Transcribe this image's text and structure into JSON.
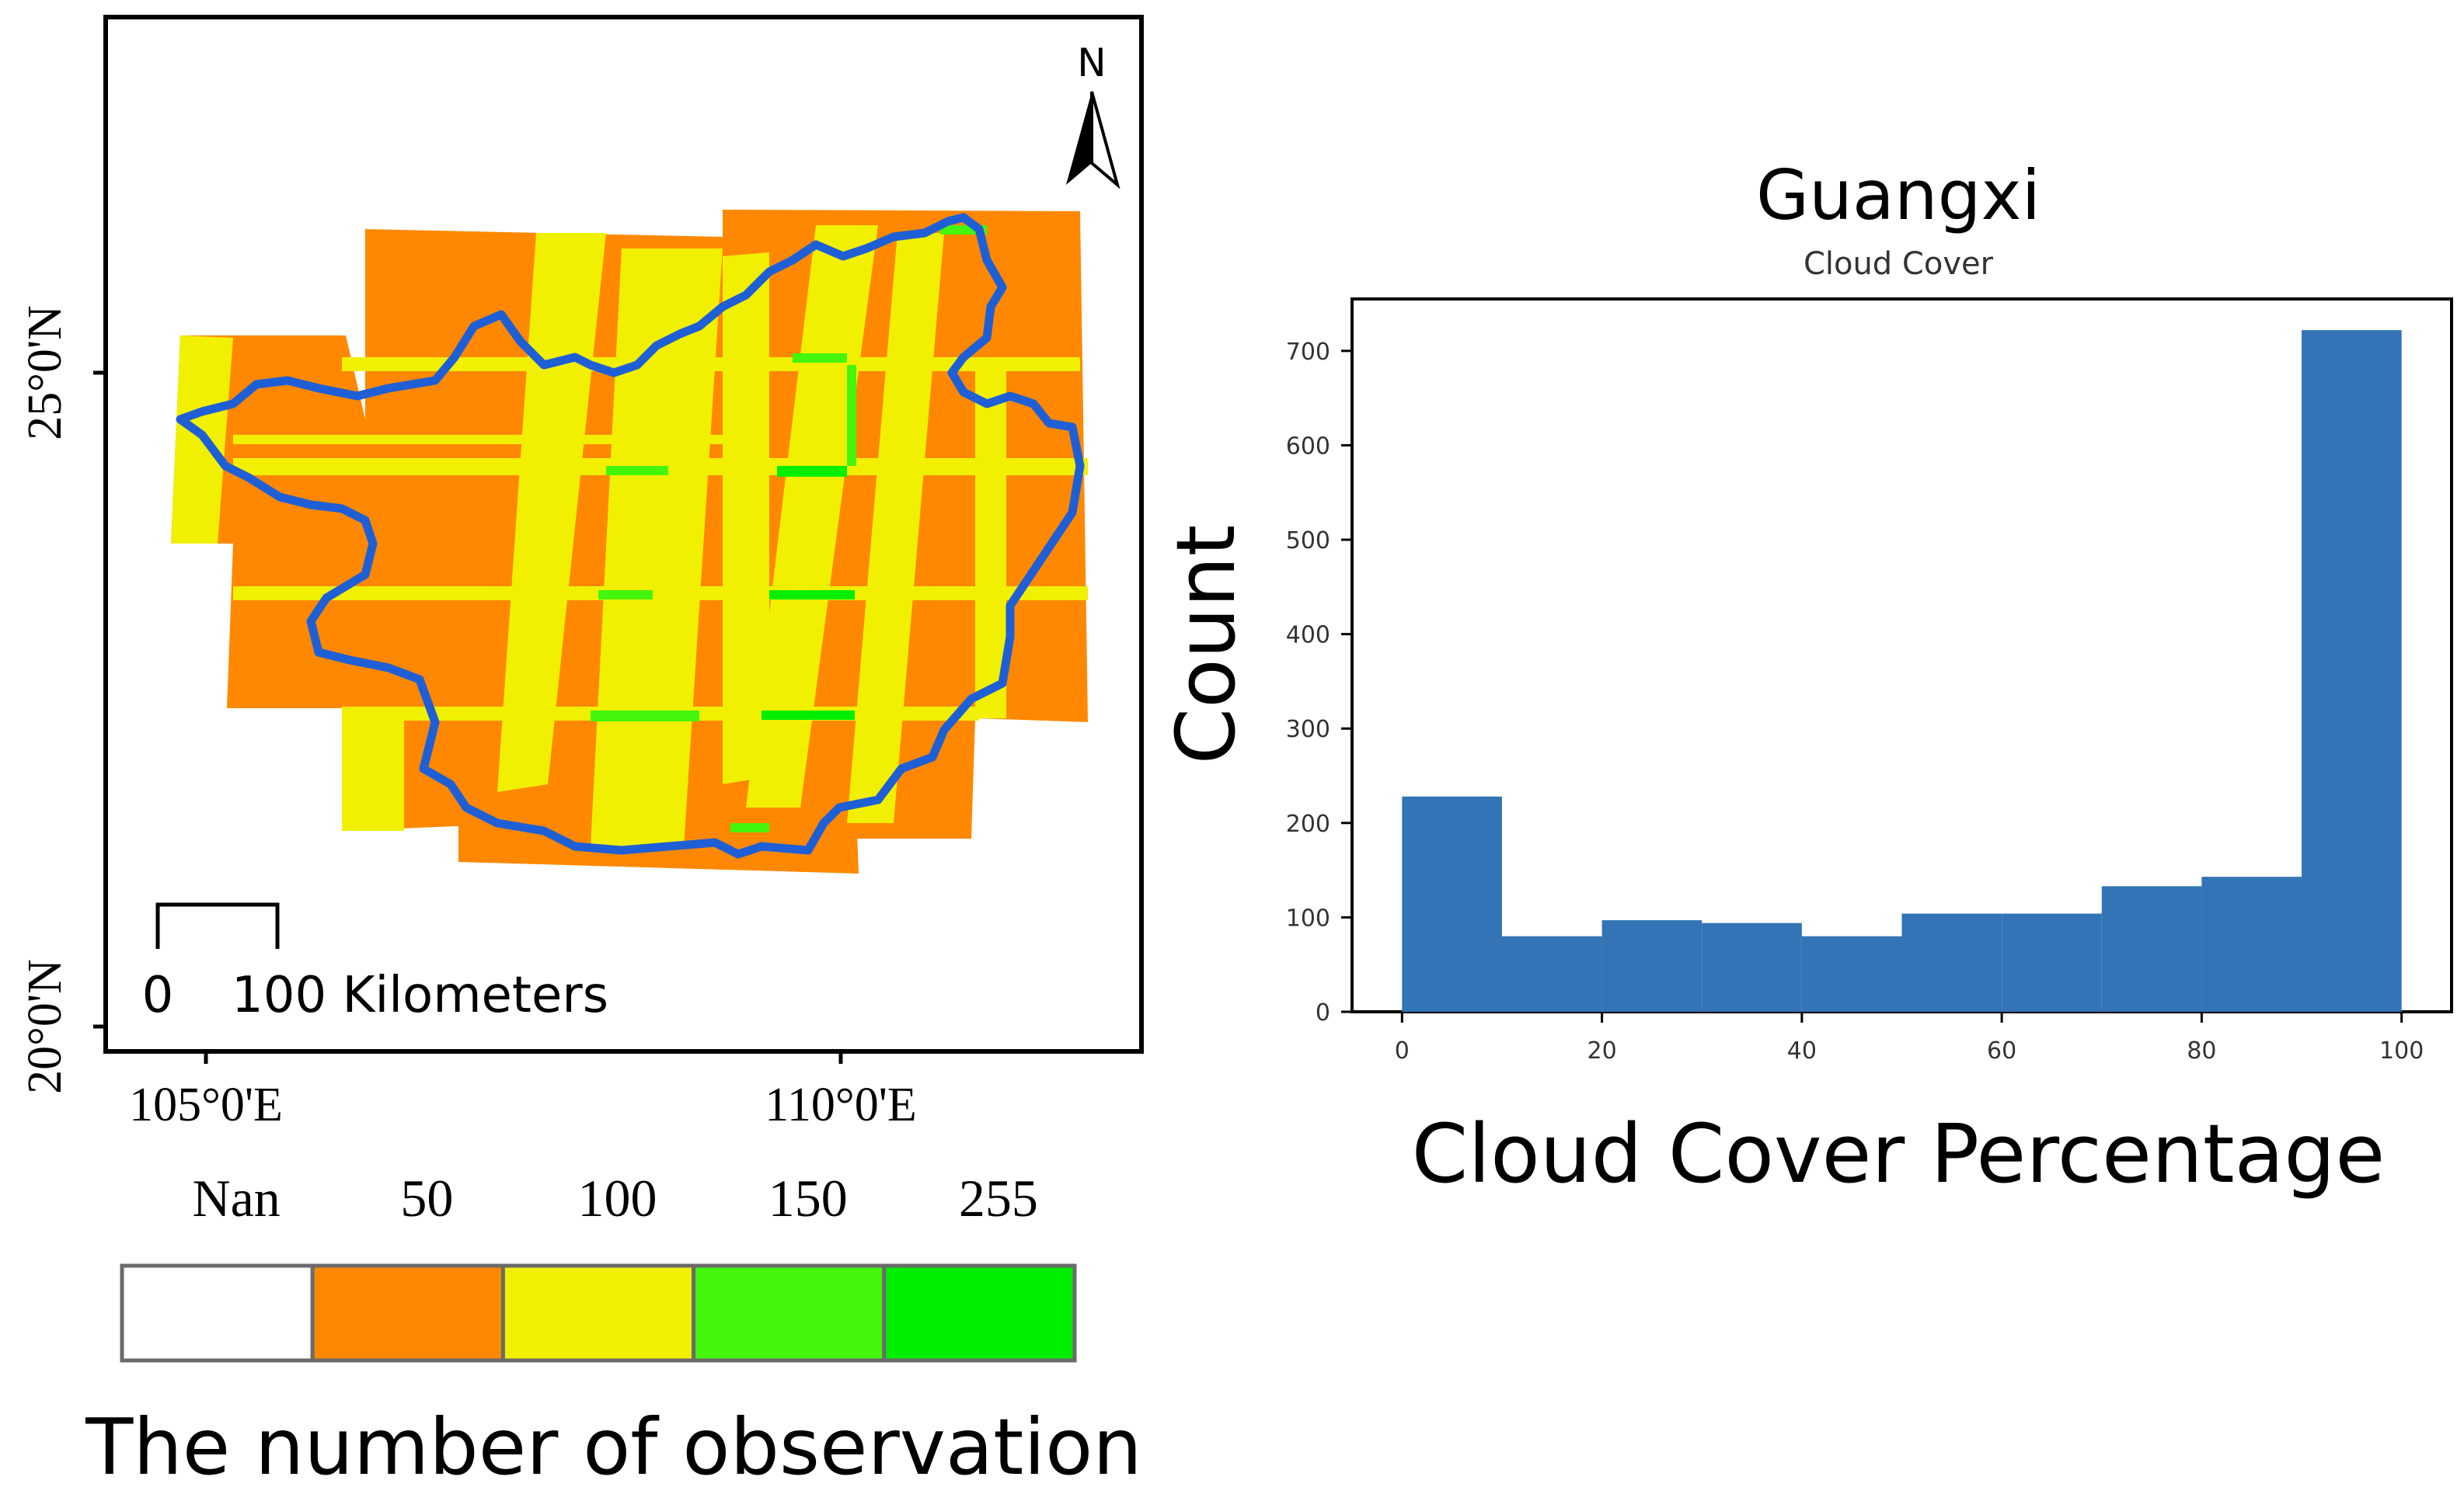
{
  "map_panel": {
    "north_arrow_label": "N",
    "scale_bar": {
      "zero_label": "0",
      "end_label": "100 Kilometers"
    },
    "lat_ticks": [
      "25°0'N",
      "20°0'N"
    ],
    "lon_ticks": [
      "105°0'E",
      "110°0'E"
    ],
    "boundary_color": "#1f5fd6"
  },
  "legend": {
    "classes": [
      {
        "label": "Nan",
        "color": "#ffffff"
      },
      {
        "label": "50",
        "color": "#ff8800"
      },
      {
        "label": "100",
        "color": "#f0f000"
      },
      {
        "label": "150",
        "color": "#44f50c"
      },
      {
        "label": "255",
        "color": "#00ee00"
      }
    ],
    "title": "The number of observation"
  },
  "chart_data": {
    "type": "bar",
    "title": "Guangxi",
    "subtitle": "Cloud Cover",
    "xlabel": "Cloud Cover Percentage",
    "ylabel": "Count",
    "bin_edges": [
      0,
      10,
      20,
      30,
      40,
      50,
      60,
      70,
      80,
      90,
      100
    ],
    "values": [
      228,
      80,
      97,
      94,
      80,
      104,
      104,
      133,
      143,
      722
    ],
    "xlim": [
      -5,
      105
    ],
    "ylim": [
      0,
      755
    ],
    "xticks": [
      0,
      20,
      40,
      60,
      80,
      100
    ],
    "yticks": [
      0,
      100,
      200,
      300,
      400,
      500,
      600,
      700
    ],
    "bar_color": "#3274b5",
    "grid": false
  }
}
